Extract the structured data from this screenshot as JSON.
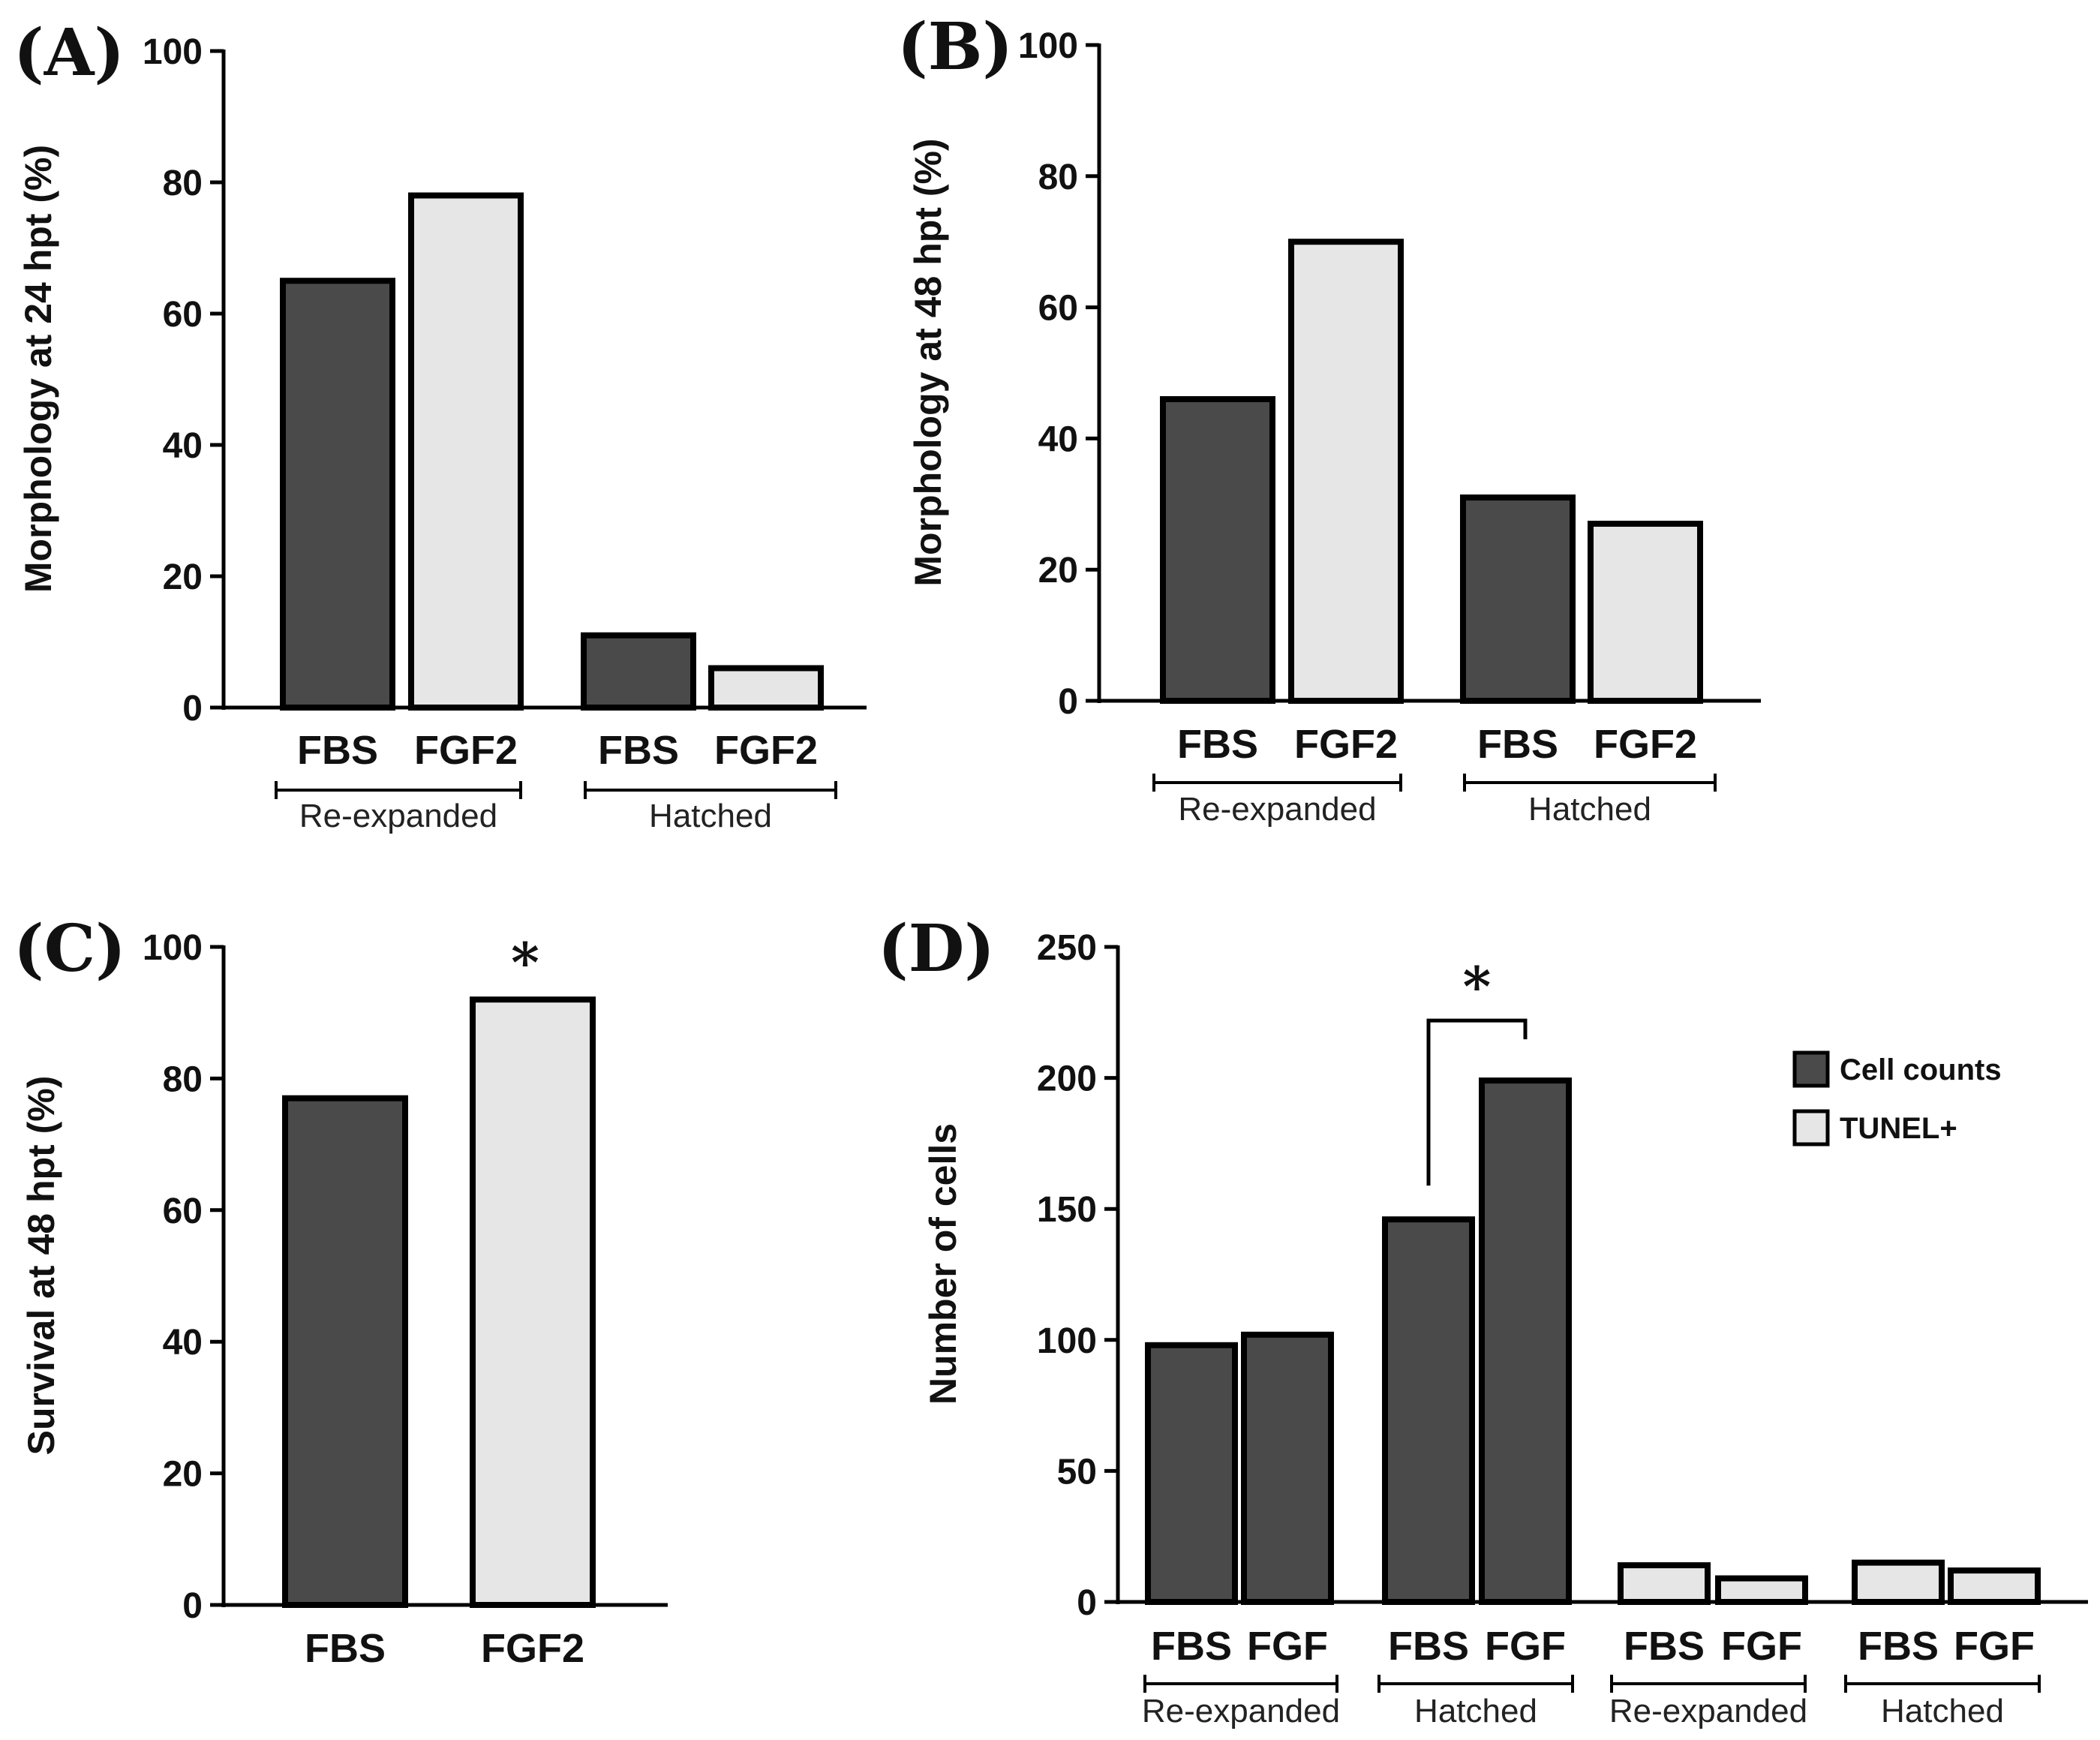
{
  "colors": {
    "dark": "#4a4a4a",
    "light": "#e6e6e6",
    "stroke": "#000000"
  },
  "chart_data": [
    {
      "panel": "(A)",
      "type": "bar",
      "ylabel": "Morphology at 24 hpt (%)",
      "ylim": [
        0,
        100
      ],
      "yticks": [
        "0",
        "20",
        "40",
        "60",
        "80",
        "100"
      ],
      "categories": [
        "FBS",
        "FGF2",
        "FBS",
        "FGF2"
      ],
      "values": [
        65,
        78,
        11,
        6
      ],
      "fills": [
        "dark",
        "light",
        "dark",
        "light"
      ],
      "groups": [
        {
          "label": "Re-expanded",
          "members": [
            0,
            1
          ]
        },
        {
          "label": "Hatched",
          "members": [
            2,
            3
          ]
        }
      ]
    },
    {
      "panel": "(B)",
      "type": "bar",
      "ylabel": "Morphology at 48 hpt (%)",
      "ylim": [
        0,
        100
      ],
      "yticks": [
        "0",
        "20",
        "40",
        "60",
        "80",
        "100"
      ],
      "categories": [
        "FBS",
        "FGF2",
        "FBS",
        "FGF2"
      ],
      "values": [
        46,
        70,
        31,
        27
      ],
      "fills": [
        "dark",
        "light",
        "dark",
        "light"
      ],
      "groups": [
        {
          "label": "Re-expanded",
          "members": [
            0,
            1
          ]
        },
        {
          "label": "Hatched",
          "members": [
            2,
            3
          ]
        }
      ]
    },
    {
      "panel": "(C)",
      "type": "bar",
      "ylabel": "Survival at 48 hpt (%)",
      "ylim": [
        0,
        100
      ],
      "yticks": [
        "0",
        "20",
        "40",
        "60",
        "80",
        "100"
      ],
      "categories": [
        "FBS",
        "FGF2"
      ],
      "values": [
        77,
        92
      ],
      "fills": [
        "dark",
        "light"
      ],
      "significance": {
        "label": "*",
        "bar_index": 1
      }
    },
    {
      "panel": "(D)",
      "type": "bar",
      "ylabel": "Number of cells",
      "ylim": [
        0,
        250
      ],
      "yticks": [
        "0",
        "50",
        "100",
        "150",
        "200",
        "250"
      ],
      "categories": [
        "FBS",
        "FGF",
        "FBS",
        "FGF",
        "FBS",
        "FGF",
        "FBS",
        "FGF"
      ],
      "values": [
        98,
        102,
        146,
        199,
        14,
        9,
        15,
        12
      ],
      "fills": [
        "dark",
        "dark",
        "dark",
        "dark",
        "light",
        "light",
        "light",
        "light"
      ],
      "groups": [
        {
          "label": "Re-expanded",
          "members": [
            0,
            1
          ]
        },
        {
          "label": "Hatched",
          "members": [
            2,
            3
          ]
        },
        {
          "label": "Re-expanded",
          "members": [
            4,
            5
          ]
        },
        {
          "label": "Hatched",
          "members": [
            6,
            7
          ]
        }
      ],
      "significance": {
        "label": "*",
        "between": [
          2,
          3
        ]
      },
      "legend": [
        {
          "label": "Cell counts",
          "fill": "dark"
        },
        {
          "label": "TUNEL+",
          "fill": "light"
        }
      ]
    }
  ]
}
